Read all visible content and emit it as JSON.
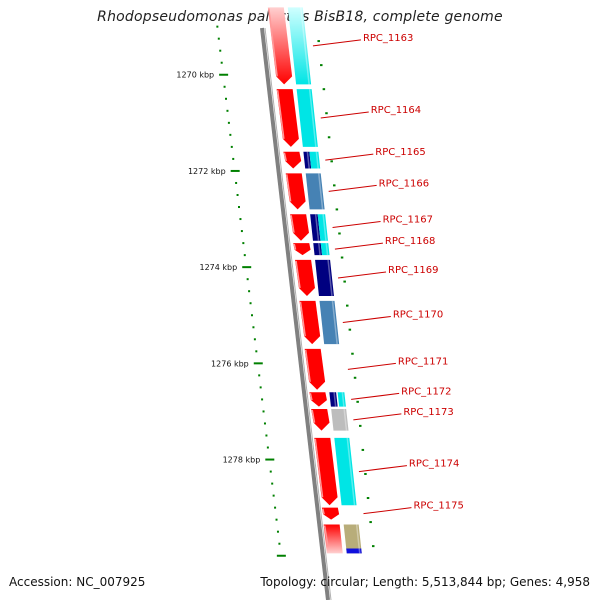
{
  "title": "Rhodopseudomonas palustris BisB18, complete genome",
  "footer": {
    "accession": "Accession: NC_007925",
    "summary": "Topology: circular; Length: 5,513,844 bp; Genes: 4,958"
  },
  "axis_labels": [
    {
      "text": "1270 kbp",
      "kbp": 1270
    },
    {
      "text": "1272 kbp",
      "kbp": 1272
    },
    {
      "text": "1274 kbp",
      "kbp": 1274
    },
    {
      "text": "1276 kbp",
      "kbp": 1276
    },
    {
      "text": "1278 kbp",
      "kbp": 1278
    }
  ],
  "colors": {
    "backbone": "#808080",
    "cds": "#ff0000",
    "cds_fade": "#ffc8c8",
    "cyan": "#00e5e5",
    "cyan_fade": "#c8ffff",
    "navy": "#000080",
    "steel": "#4682b4",
    "silver": "#bdbdbd",
    "khaki": "#b8ad7a",
    "blue": "#1010dd",
    "tick": "#008000",
    "label": "#cc0000"
  },
  "genes": [
    {
      "label": "RPC_1163",
      "start": 1268.6,
      "end": 1270.2,
      "features": [
        {
          "c": "cyan",
          "s": 1268.6,
          "e": 1270.2
        }
      ]
    },
    {
      "label": "RPC_1164",
      "start": 1270.3,
      "end": 1271.5,
      "features": [
        {
          "c": "cyan",
          "s": 1270.3,
          "e": 1271.5
        }
      ]
    },
    {
      "label": "RPC_1165",
      "start": 1271.6,
      "end": 1271.95,
      "features": [
        {
          "c": "navy",
          "s": 1271.6,
          "e": 1271.95,
          "w": 0.4
        },
        {
          "c": "cyan",
          "s": 1271.6,
          "e": 1271.95,
          "o": 0.4,
          "w": 0.6
        }
      ]
    },
    {
      "label": "RPC_1166",
      "start": 1272.05,
      "end": 1272.8,
      "features": [
        {
          "c": "steel",
          "s": 1272.05,
          "e": 1272.8
        }
      ]
    },
    {
      "label": "RPC_1167",
      "start": 1272.9,
      "end": 1273.45,
      "features": [
        {
          "c": "navy",
          "s": 1272.9,
          "e": 1273.45,
          "w": 0.5
        },
        {
          "c": "cyan",
          "s": 1272.9,
          "e": 1273.45,
          "o": 0.5,
          "w": 0.5
        }
      ]
    },
    {
      "label": "RPC_1168",
      "start": 1273.5,
      "end": 1273.75,
      "features": [
        {
          "c": "navy",
          "s": 1273.5,
          "e": 1273.75,
          "w": 0.5
        },
        {
          "c": "cyan",
          "s": 1273.5,
          "e": 1273.75,
          "o": 0.5,
          "w": 0.5
        }
      ]
    },
    {
      "label": "RPC_1169",
      "start": 1273.85,
      "end": 1274.6,
      "features": [
        {
          "c": "navy",
          "s": 1273.85,
          "e": 1274.6
        }
      ]
    },
    {
      "label": "RPC_1170",
      "start": 1274.7,
      "end": 1275.6,
      "features": [
        {
          "c": "steel",
          "s": 1274.7,
          "e": 1275.6
        }
      ]
    },
    {
      "label": "RPC_1171",
      "start": 1275.7,
      "end": 1276.55,
      "features": []
    },
    {
      "label": "RPC_1172",
      "start": 1276.6,
      "end": 1276.9,
      "features": [
        {
          "c": "navy",
          "s": 1276.6,
          "e": 1276.9,
          "w": 0.45
        },
        {
          "c": "cyan",
          "s": 1276.6,
          "e": 1276.9,
          "o": 0.55,
          "w": 0.45
        }
      ]
    },
    {
      "label": "RPC_1173",
      "start": 1276.95,
      "end": 1277.4,
      "features": [
        {
          "c": "silver",
          "s": 1276.95,
          "e": 1277.4
        }
      ]
    },
    {
      "label": "RPC_1174",
      "start": 1277.55,
      "end": 1278.95,
      "features": [
        {
          "c": "cyan",
          "s": 1277.55,
          "e": 1278.95
        }
      ]
    },
    {
      "label": "RPC_1175",
      "start": 1279.0,
      "end": 1279.25,
      "features": []
    },
    {
      "label": "",
      "start": 1279.35,
      "end": 1279.95,
      "features": [
        {
          "c": "khaki",
          "s": 1279.35,
          "e": 1279.95
        },
        {
          "c": "blue",
          "s": 1279.85,
          "e": 1279.95
        }
      ]
    }
  ]
}
